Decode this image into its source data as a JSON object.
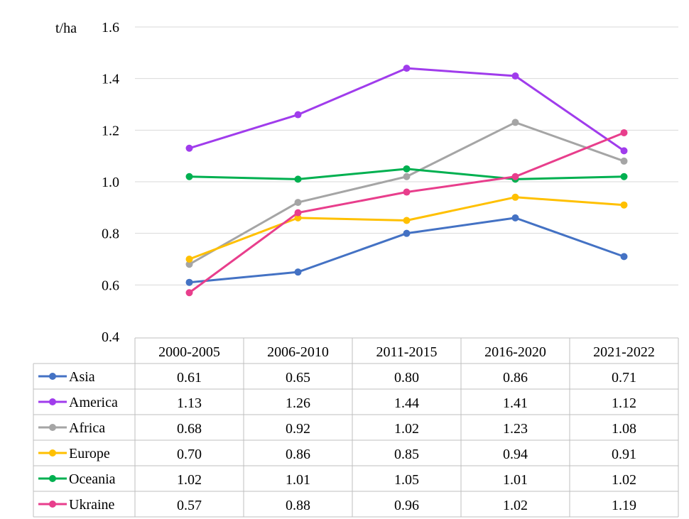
{
  "chart_data": {
    "type": "line",
    "ylabel": "t/ha",
    "ylim": [
      0.4,
      1.6
    ],
    "yticks": [
      "0.4",
      "0.6",
      "0.8",
      "1.0",
      "1.2",
      "1.4",
      "1.6"
    ],
    "categories": [
      "2000-2005",
      "2006-2010",
      "2011-2015",
      "2016-2020",
      "2021-2022"
    ],
    "grid": true,
    "legend": "data-table-left",
    "series": [
      {
        "name": "Asia",
        "color": "#4472C4",
        "values": [
          0.61,
          0.65,
          0.8,
          0.86,
          0.71
        ],
        "labels": [
          "0.61",
          "0.65",
          "0.80",
          "0.86",
          "0.71"
        ]
      },
      {
        "name": "America",
        "color": "#A03CEC",
        "values": [
          1.13,
          1.26,
          1.44,
          1.41,
          1.12
        ],
        "labels": [
          "1.13",
          "1.26",
          "1.44",
          "1.41",
          "1.12"
        ]
      },
      {
        "name": "Africa",
        "color": "#A5A5A5",
        "values": [
          0.68,
          0.92,
          1.02,
          1.23,
          1.08
        ],
        "labels": [
          "0.68",
          "0.92",
          "1.02",
          "1.23",
          "1.08"
        ]
      },
      {
        "name": "Europe",
        "color": "#FFC000",
        "values": [
          0.7,
          0.86,
          0.85,
          0.94,
          0.91
        ],
        "labels": [
          "0.70",
          "0.86",
          "0.85",
          "0.94",
          "0.91"
        ]
      },
      {
        "name": "Oceania",
        "color": "#00B050",
        "values": [
          1.02,
          1.01,
          1.05,
          1.01,
          1.02
        ],
        "labels": [
          "1.02",
          "1.01",
          "1.05",
          "1.01",
          "1.02"
        ]
      },
      {
        "name": "Ukraine",
        "color": "#E83E8C",
        "values": [
          0.57,
          0.88,
          0.96,
          1.02,
          1.19
        ],
        "labels": [
          "0.57",
          "0.88",
          "0.96",
          "1.02",
          "1.19"
        ]
      }
    ]
  }
}
